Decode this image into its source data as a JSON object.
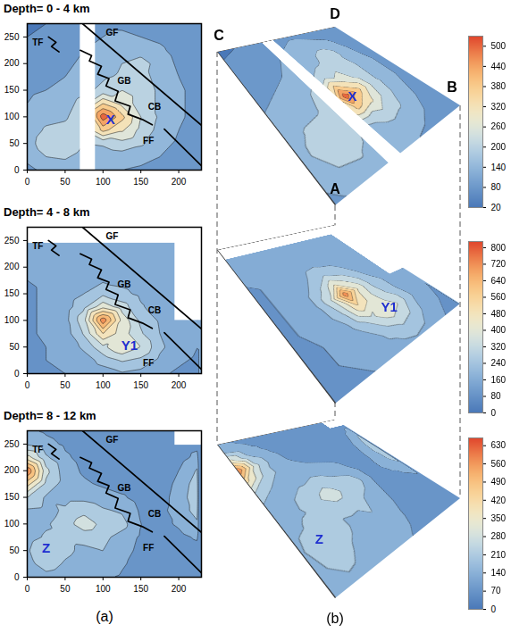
{
  "chart_data": [
    {
      "type": "contour",
      "title": "Depth= 0 - 4 km",
      "xlim": [
        0,
        230
      ],
      "ylim": [
        0,
        275
      ],
      "xticks": [
        0,
        50,
        100,
        150,
        200
      ],
      "yticks": [
        0,
        50,
        100,
        150,
        200,
        250
      ],
      "x": [
        0,
        25,
        50,
        75,
        100,
        125,
        150,
        175,
        200,
        225
      ],
      "y": [
        0,
        25,
        50,
        75,
        100,
        125,
        150,
        175,
        200,
        225,
        250,
        275
      ],
      "values": [
        [
          130,
          150,
          160,
          150,
          140,
          140,
          130,
          120,
          110,
          100
        ],
        [
          150,
          200,
          210,
          170,
          160,
          170,
          160,
          140,
          120,
          110
        ],
        [
          170,
          240,
          260,
          200,
          210,
          240,
          210,
          160,
          130,
          110
        ],
        [
          160,
          210,
          220,
          260,
          400,
          330,
          240,
          180,
          140,
          120
        ],
        [
          150,
          180,
          190,
          250,
          540,
          400,
          260,
          190,
          150,
          120
        ],
        [
          140,
          160,
          170,
          230,
          380,
          300,
          230,
          190,
          150,
          120
        ],
        [
          130,
          140,
          150,
          180,
          220,
          260,
          230,
          190,
          150,
          120
        ],
        [
          120,
          130,
          140,
          160,
          190,
          210,
          220,
          180,
          140,
          120
        ],
        [
          110,
          120,
          130,
          150,
          170,
          200,
          230,
          170,
          130,
          110
        ],
        [
          100,
          110,
          120,
          140,
          150,
          170,
          170,
          150,
          120,
          100
        ],
        [
          80,
          90,
          110,
          130,
          140,
          150,
          140,
          130,
          110,
          100
        ],
        [
          70,
          80,
          100,
          120,
          130,
          130,
          120,
          110,
          100,
          90
        ]
      ],
      "colorbar": {
        "lim": [
          20,
          530
        ],
        "ticks": [
          20,
          80,
          140,
          200,
          260,
          320,
          380,
          440,
          500
        ]
      },
      "no_data": [
        {
          "x1": 70,
          "x2": 90,
          "y1": 0,
          "y2": 275
        }
      ],
      "faults": [
        {
          "points": [
            [
              73,
              275
            ],
            [
              230,
              84
            ]
          ]
        },
        {
          "points": [
            [
              70,
              225
            ],
            [
              85,
              215
            ],
            [
              82,
              205
            ],
            [
              98,
              195
            ],
            [
              93,
              180
            ],
            [
              108,
              172
            ],
            [
              104,
              158
            ],
            [
              120,
              148
            ],
            [
              116,
              130
            ],
            [
              136,
              120
            ],
            [
              133,
              105
            ],
            [
              152,
              95
            ],
            [
              165,
              85
            ]
          ]
        },
        {
          "points": [
            [
              181,
              77
            ],
            [
              230,
              8
            ]
          ]
        },
        {
          "points": [
            [
              28,
              250
            ],
            [
              38,
              240
            ],
            [
              32,
              232
            ],
            [
              42,
              222
            ]
          ]
        }
      ],
      "fault_labels": [
        {
          "text": "TF",
          "x": 14,
          "y": 240
        },
        {
          "text": "GF",
          "x": 112,
          "y": 258
        },
        {
          "text": "GB",
          "x": 128,
          "y": 168
        },
        {
          "text": "CB",
          "x": 168,
          "y": 118
        },
        {
          "text": "FF",
          "x": 160,
          "y": 55
        }
      ],
      "annotations": [
        {
          "text": "X",
          "x": 110,
          "y": 95
        }
      ]
    },
    {
      "type": "contour",
      "title": "Depth= 4 - 8 km",
      "xlim": [
        0,
        230
      ],
      "ylim": [
        0,
        275
      ],
      "xticks": [
        0,
        50,
        100,
        150,
        200
      ],
      "yticks": [
        0,
        50,
        100,
        150,
        200,
        250
      ],
      "x": [
        0,
        25,
        50,
        75,
        100,
        125,
        150,
        175,
        200,
        225
      ],
      "y": [
        0,
        25,
        50,
        75,
        100,
        125,
        150,
        175,
        200,
        225,
        250,
        275
      ],
      "values": [
        [
          140,
          150,
          160,
          170,
          200,
          230,
          210,
          170,
          150,
          140
        ],
        [
          150,
          160,
          170,
          200,
          270,
          330,
          300,
          220,
          170,
          150
        ],
        [
          150,
          160,
          180,
          260,
          380,
          480,
          400,
          260,
          190,
          160
        ],
        [
          150,
          170,
          200,
          330,
          560,
          440,
          330,
          240,
          180,
          160
        ],
        [
          150,
          170,
          210,
          380,
          780,
          460,
          300,
          230,
          180,
          160
        ],
        [
          150,
          170,
          200,
          300,
          460,
          360,
          250,
          200,
          170,
          150
        ],
        [
          150,
          170,
          190,
          240,
          300,
          260,
          220,
          190,
          160,
          150
        ],
        [
          160,
          170,
          180,
          210,
          230,
          220,
          200,
          180,
          160,
          150
        ],
        [
          170,
          180,
          190,
          200,
          210,
          200,
          190,
          180,
          170,
          160
        ],
        [
          180,
          190,
          200,
          200,
          200,
          200,
          190,
          180,
          170,
          160
        ],
        [
          190,
          200,
          200,
          200,
          200,
          200,
          190,
          180,
          170,
          160
        ],
        [
          190,
          200,
          200,
          200,
          200,
          200,
          190,
          180,
          170,
          160
        ]
      ],
      "colorbar": {
        "lim": [
          0,
          830
        ],
        "ticks": [
          0,
          80,
          160,
          240,
          320,
          400,
          480,
          560,
          640,
          720,
          800
        ]
      },
      "no_data": [
        {
          "x1": 0,
          "x2": 230,
          "y1": 245,
          "y2": 275
        },
        {
          "x1": 195,
          "x2": 230,
          "y1": 100,
          "y2": 275
        }
      ],
      "faults": [
        {
          "points": [
            [
              73,
              275
            ],
            [
              230,
              84
            ]
          ]
        },
        {
          "points": [
            [
              70,
              225
            ],
            [
              85,
              215
            ],
            [
              82,
              205
            ],
            [
              98,
              195
            ],
            [
              93,
              180
            ],
            [
              108,
              172
            ],
            [
              104,
              158
            ],
            [
              120,
              148
            ],
            [
              116,
              130
            ],
            [
              136,
              120
            ],
            [
              133,
              105
            ],
            [
              152,
              95
            ],
            [
              165,
              85
            ]
          ]
        },
        {
          "points": [
            [
              181,
              77
            ],
            [
              230,
              8
            ]
          ]
        },
        {
          "points": [
            [
              28,
              250
            ],
            [
              38,
              240
            ],
            [
              32,
              232
            ],
            [
              42,
              222
            ]
          ]
        }
      ],
      "fault_labels": [
        {
          "text": "TF",
          "x": 14,
          "y": 240
        },
        {
          "text": "GF",
          "x": 112,
          "y": 258
        },
        {
          "text": "GB",
          "x": 128,
          "y": 168
        },
        {
          "text": "CB",
          "x": 168,
          "y": 118
        },
        {
          "text": "FF",
          "x": 160,
          "y": 20
        }
      ],
      "annotations": [
        {
          "text": "Y1",
          "x": 135,
          "y": 52
        }
      ]
    },
    {
      "type": "contour",
      "title": "Depth= 8 - 12 km",
      "xlim": [
        0,
        230
      ],
      "ylim": [
        0,
        275
      ],
      "xticks": [
        0,
        50,
        100,
        150,
        200
      ],
      "yticks": [
        0,
        50,
        100,
        150,
        200,
        250
      ],
      "x": [
        0,
        25,
        50,
        75,
        100,
        125,
        150,
        175,
        200,
        225
      ],
      "y": [
        0,
        25,
        50,
        75,
        100,
        125,
        150,
        175,
        200,
        225,
        250,
        275
      ],
      "values": [
        [
          150,
          180,
          160,
          140,
          150,
          130,
          100,
          90,
          90,
          80
        ],
        [
          180,
          250,
          200,
          170,
          200,
          150,
          110,
          90,
          90,
          90
        ],
        [
          200,
          280,
          230,
          190,
          210,
          170,
          120,
          100,
          100,
          110
        ],
        [
          180,
          220,
          230,
          240,
          230,
          180,
          130,
          110,
          120,
          150
        ],
        [
          170,
          200,
          250,
          320,
          260,
          240,
          140,
          120,
          150,
          200
        ],
        [
          200,
          190,
          220,
          260,
          220,
          200,
          130,
          120,
          170,
          240
        ],
        [
          280,
          200,
          190,
          190,
          170,
          150,
          110,
          110,
          170,
          260
        ],
        [
          450,
          260,
          180,
          150,
          130,
          110,
          100,
          100,
          160,
          250
        ],
        [
          630,
          300,
          170,
          130,
          110,
          100,
          90,
          90,
          140,
          220
        ],
        [
          380,
          220,
          150,
          120,
          100,
          90,
          80,
          80,
          110,
          160
        ],
        [
          200,
          160,
          130,
          110,
          100,
          90,
          80,
          80,
          100,
          120
        ],
        [
          150,
          130,
          110,
          100,
          90,
          80,
          70,
          80,
          90,
          100
        ]
      ],
      "colorbar": {
        "lim": [
          0,
          660
        ],
        "ticks": [
          0,
          70,
          140,
          210,
          280,
          350,
          420,
          490,
          560,
          630
        ]
      },
      "no_data": [
        {
          "x1": 195,
          "x2": 230,
          "y1": 248,
          "y2": 275
        }
      ],
      "faults": [
        {
          "points": [
            [
              73,
              275
            ],
            [
              230,
              84
            ]
          ]
        },
        {
          "points": [
            [
              70,
              225
            ],
            [
              85,
              215
            ],
            [
              82,
              205
            ],
            [
              98,
              195
            ],
            [
              93,
              180
            ],
            [
              108,
              172
            ],
            [
              104,
              158
            ],
            [
              120,
              148
            ],
            [
              116,
              130
            ],
            [
              136,
              120
            ],
            [
              133,
              105
            ],
            [
              152,
              95
            ],
            [
              165,
              85
            ]
          ]
        },
        {
          "points": [
            [
              181,
              77
            ],
            [
              230,
              8
            ]
          ]
        },
        {
          "points": [
            [
              28,
              250
            ],
            [
              38,
              240
            ],
            [
              32,
              232
            ],
            [
              42,
              222
            ]
          ]
        }
      ],
      "fault_labels": [
        {
          "text": "TF",
          "x": 14,
          "y": 240
        },
        {
          "text": "GF",
          "x": 112,
          "y": 258
        },
        {
          "text": "GB",
          "x": 128,
          "y": 168
        },
        {
          "text": "CB",
          "x": 168,
          "y": 118
        },
        {
          "text": "FF",
          "x": 160,
          "y": 55
        }
      ],
      "annotations": [
        {
          "text": "Z",
          "x": 25,
          "y": 55
        }
      ]
    }
  ],
  "panel_labels": [
    "(a)",
    "(b)"
  ],
  "view_3d": {
    "corner_labels": [
      "C",
      "D",
      "B",
      "A"
    ]
  }
}
